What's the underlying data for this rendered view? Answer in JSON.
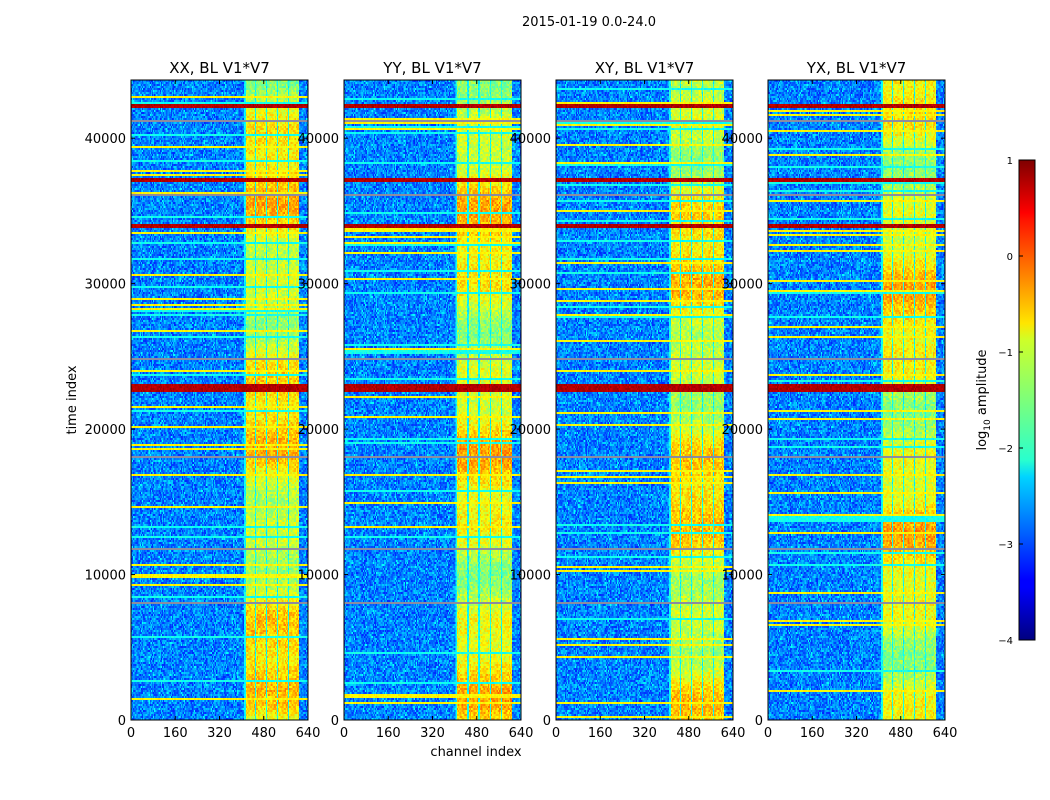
{
  "suptitle": "2015-01-19 0.0-24.0",
  "colorbar": {
    "label": "log",
    "label_sub": "10",
    "label_rest": " amplitude",
    "ticks": [
      "1",
      "0",
      "−1",
      "−2",
      "−3",
      "−4"
    ],
    "tick_values": [
      1,
      0,
      -1,
      -2,
      -3,
      -4
    ],
    "range": [
      -4,
      1
    ],
    "colormap": "jet"
  },
  "chart_data": [
    {
      "type": "heatmap",
      "title": "XX, BL V1*V7",
      "xlabel": "",
      "ylabel": "time index",
      "xlim": [
        0,
        640
      ],
      "ylim": [
        0,
        44000
      ],
      "xticks": [
        "0",
        "160",
        "320",
        "480",
        "640"
      ],
      "yticks": [
        "0",
        "10000",
        "20000",
        "30000",
        "40000"
      ],
      "active_band": [
        410,
        610
      ],
      "strong_rows": [
        22700,
        23100,
        37300,
        34100,
        42400
      ],
      "grey_rows": [
        41200,
        36200,
        24800,
        18000,
        11700,
        8000
      ],
      "seed": 11
    },
    {
      "type": "heatmap",
      "title": "YY, BL V1*V7",
      "xlabel": "channel index",
      "ylabel": "",
      "xlim": [
        0,
        640
      ],
      "ylim": [
        0,
        44000
      ],
      "xticks": [
        "0",
        "160",
        "320",
        "480",
        "640"
      ],
      "yticks": [
        "0",
        "10000",
        "20000",
        "30000",
        "40000"
      ],
      "active_band": [
        405,
        610
      ],
      "strong_rows": [
        22700,
        23100,
        37300,
        34100,
        42400
      ],
      "grey_rows": [
        41200,
        36200,
        24800,
        18000,
        11700,
        8000
      ],
      "seed": 23
    },
    {
      "type": "heatmap",
      "title": "XY, BL V1*V7",
      "xlabel": "",
      "ylabel": "",
      "xlim": [
        0,
        640
      ],
      "ylim": [
        0,
        44000
      ],
      "xticks": [
        "0",
        "160",
        "320",
        "480",
        "640"
      ],
      "yticks": [
        "0",
        "10000",
        "20000",
        "30000",
        "40000"
      ],
      "active_band": [
        410,
        610
      ],
      "strong_rows": [
        22700,
        23100,
        37300,
        34100,
        42400
      ],
      "grey_rows": [
        41200,
        36200,
        24800,
        18000,
        11700,
        8000
      ],
      "seed": 37
    },
    {
      "type": "heatmap",
      "title": "YX, BL V1*V7",
      "xlabel": "",
      "ylabel": "",
      "xlim": [
        0,
        640
      ],
      "ylim": [
        0,
        44000
      ],
      "xticks": [
        "0",
        "160",
        "320",
        "480",
        "640"
      ],
      "yticks": [
        "0",
        "10000",
        "20000",
        "30000",
        "40000"
      ],
      "active_band": [
        410,
        610
      ],
      "strong_rows": [
        22700,
        23100,
        37300,
        34100,
        42400
      ],
      "grey_rows": [
        41200,
        36200,
        24800,
        18000,
        11700,
        8000
      ],
      "seed": 53
    }
  ]
}
